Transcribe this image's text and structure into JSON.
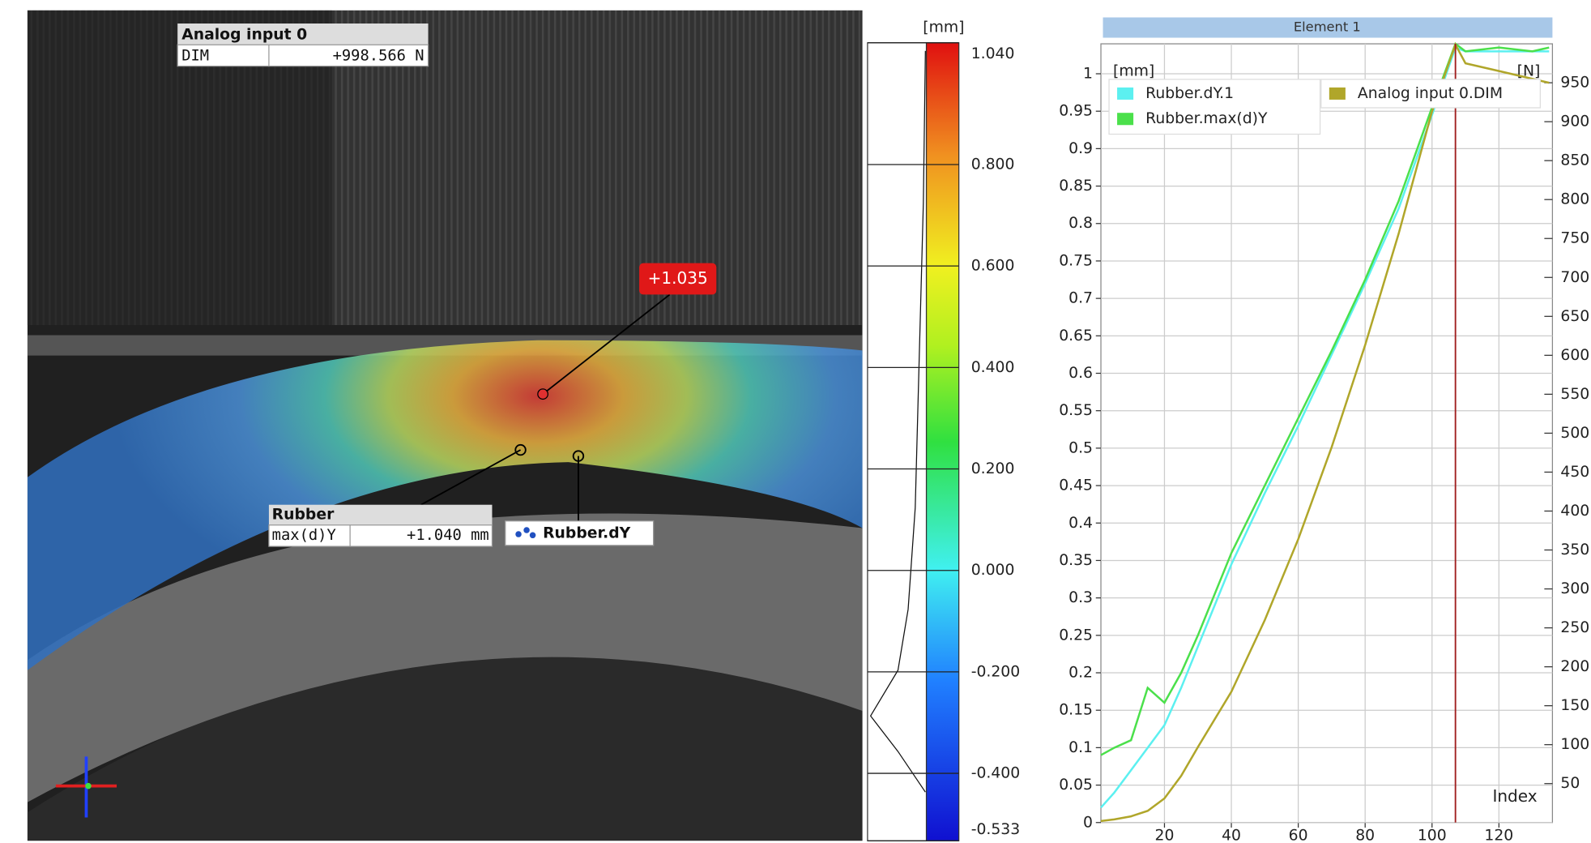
{
  "image_panel": {
    "analog_box": {
      "title": "Analog input 0",
      "label": "DIM",
      "value": "+998.566 N"
    },
    "point_label": "+1.035",
    "rubber_box": {
      "title": "Rubber",
      "label": "max(d)Y",
      "value": "+1.040 mm"
    },
    "component_label": "Rubber.dY"
  },
  "colorbar": {
    "unit": "[mm]",
    "range": [
      -0.533,
      1.04
    ],
    "ticks": [
      {
        "value": 1.04,
        "label": "1.040"
      },
      {
        "value": 0.8,
        "label": "0.800"
      },
      {
        "value": 0.6,
        "label": "0.600"
      },
      {
        "value": 0.4,
        "label": "0.400"
      },
      {
        "value": 0.2,
        "label": "0.200"
      },
      {
        "value": 0,
        "label": "0.000"
      },
      {
        "value": -0.2,
        "label": "-0.200"
      },
      {
        "value": -0.4,
        "label": "-0.400"
      },
      {
        "value": -0.533,
        "label": "-0.533"
      }
    ]
  },
  "chart_data": {
    "type": "line",
    "title": "Element 1",
    "y_label": "[mm]",
    "y2_label": "[N]",
    "x_label": "Index",
    "x": [
      1,
      5,
      10,
      15,
      20,
      25,
      30,
      40,
      50,
      60,
      70,
      80,
      90,
      100,
      107,
      110,
      120,
      130,
      135
    ],
    "series": [
      {
        "name": "Rubber.dY.1",
        "color": "#5cf0f0",
        "values": [
          0.02,
          0.04,
          0.07,
          0.1,
          0.13,
          0.18,
          0.235,
          0.345,
          0.44,
          0.53,
          0.625,
          0.72,
          0.82,
          0.945,
          1.035,
          1.03,
          1.03,
          1.03,
          1.03
        ]
      },
      {
        "name": "Rubber.max(d)Y",
        "color": "#4be04b",
        "values": [
          0.09,
          0.1,
          0.11,
          0.18,
          0.16,
          0.2,
          0.25,
          0.36,
          0.45,
          0.54,
          0.63,
          0.725,
          0.83,
          0.955,
          1.04,
          1.03,
          1.035,
          1.03,
          1.035
        ]
      },
      {
        "name": "Analog input 0.DIM",
        "color": "#b0a62a",
        "axis": "y2",
        "values": [
          2,
          4,
          8,
          15,
          31,
          60,
          97,
          168,
          260,
          364,
          482,
          613,
          756,
          913,
          999,
          975,
          965,
          955,
          950
        ]
      }
    ],
    "cursor_x": 107,
    "xlim": [
      1,
      136
    ],
    "xticks": [
      20,
      40,
      60,
      80,
      100,
      120
    ],
    "ylim": [
      0,
      1.04
    ],
    "yticks": [
      0,
      0.05,
      0.1,
      0.15,
      0.2,
      0.25,
      0.3,
      0.35,
      0.4,
      0.45,
      0.5,
      0.55,
      0.6,
      0.65,
      0.7,
      0.75,
      0.8,
      0.85,
      0.9,
      0.95,
      1
    ],
    "y2lim": [
      0,
      1000
    ],
    "y2ticks": [
      50,
      100,
      150,
      200,
      250,
      300,
      350,
      400,
      450,
      500,
      550,
      600,
      650,
      700,
      750,
      800,
      850,
      900,
      950
    ],
    "grid": true
  }
}
